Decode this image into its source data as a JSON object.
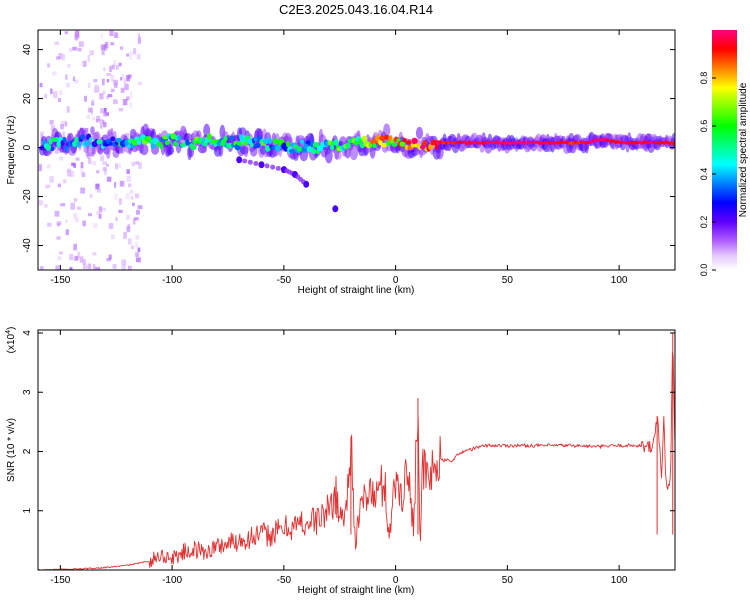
{
  "title": "C2E3.2025.043.16.04.R14",
  "chart_data": [
    {
      "type": "heatmap",
      "xlabel": "Height of straight line (km)",
      "ylabel": "Frequency (Hz)",
      "xlim": [
        -160,
        125
      ],
      "ylim": [
        -50,
        48
      ],
      "xticks": [
        -150,
        -100,
        -50,
        0,
        50,
        100
      ],
      "yticks": [
        -40,
        -20,
        0,
        20,
        40
      ],
      "grid": false,
      "colorbar": {
        "label": "Normalized spectral amplitude",
        "range": [
          0,
          1
        ],
        "ticks": [
          0.0,
          0.2,
          0.4,
          0.6,
          0.8
        ],
        "colors": [
          "#ffffff",
          "#d28cff",
          "#8c00ff",
          "#2a00ff",
          "#0060ff",
          "#00ffff",
          "#00ff80",
          "#40ff00",
          "#ffff00",
          "#ff8000",
          "#ff0000",
          "#ff0080"
        ]
      },
      "ridge": {
        "x": [
          -155,
          -150,
          -145,
          -140,
          -135,
          -130,
          -125,
          -120,
          -115,
          -110,
          -105,
          -100,
          -95,
          -90,
          -85,
          -80,
          -75,
          -70,
          -65,
          -60,
          -55,
          -50,
          -45,
          -40,
          -35,
          -30,
          -25,
          -20,
          -15,
          -10,
          -5,
          0,
          5,
          10,
          15,
          20,
          30,
          40,
          50,
          60,
          70,
          80,
          85,
          90,
          95,
          100,
          105,
          110,
          115,
          120,
          125
        ],
        "freq": [
          1,
          2,
          1,
          3,
          2,
          1,
          2,
          1,
          3,
          2,
          2,
          3,
          2,
          2,
          3,
          2,
          2,
          2,
          3,
          2,
          1,
          1,
          0,
          1,
          0,
          1,
          0,
          1,
          2,
          2,
          3,
          2,
          1,
          2,
          1,
          2,
          2,
          2,
          2,
          2,
          2,
          2,
          2,
          3,
          3,
          2,
          2,
          2,
          2,
          2,
          2
        ],
        "amplitude": [
          0.35,
          0.4,
          0.35,
          0.4,
          0.35,
          0.4,
          0.4,
          0.45,
          0.5,
          0.55,
          0.5,
          0.5,
          0.45,
          0.5,
          0.5,
          0.45,
          0.45,
          0.5,
          0.45,
          0.5,
          0.45,
          0.45,
          0.45,
          0.45,
          0.45,
          0.5,
          0.55,
          0.6,
          0.65,
          0.7,
          0.75,
          0.75,
          0.8,
          0.85,
          0.9,
          0.9,
          0.95,
          0.95,
          1.0,
          1.0,
          0.95,
          0.9,
          0.95,
          1.0,
          0.95,
          0.95,
          0.95,
          0.95,
          0.95,
          0.95,
          0.9
        ]
      },
      "features": [
        {
          "name": "lower branch",
          "x": [
            -70,
            -60,
            -50,
            -45,
            -40
          ],
          "freq": [
            -5,
            -7,
            -9,
            -11,
            -15
          ]
        },
        {
          "name": "isolated blob",
          "x": [
            -27
          ],
          "freq": [
            -25
          ]
        }
      ]
    },
    {
      "type": "line",
      "xlabel": "Height of straight line (km)",
      "ylabel": "SNR (10 * v/v)",
      "yscale_note": "(x10",
      "yscale_exp": "4",
      "xlim": [
        -160,
        125
      ],
      "ylim": [
        0,
        4.05
      ],
      "xticks": [
        -150,
        -100,
        -50,
        0,
        50,
        100
      ],
      "yticks": [
        1,
        2,
        3,
        4
      ],
      "grid": false,
      "color": "#e03030",
      "series": [
        {
          "x": [
            -160,
            -150,
            -140,
            -130,
            -120,
            -110,
            -105,
            -100,
            -95,
            -90,
            -85,
            -80,
            -75,
            -70,
            -65,
            -60,
            -55,
            -50,
            -45,
            -40,
            -35,
            -30,
            -27,
            -25,
            -22,
            -20,
            -18,
            -15,
            -12,
            -10,
            -8,
            -5,
            -3,
            0,
            3,
            5,
            8,
            10,
            11,
            12,
            15,
            18,
            20,
            25,
            30,
            35,
            40,
            50,
            60,
            70,
            80,
            90,
            100,
            110,
            115,
            117,
            118,
            119,
            120,
            121,
            122,
            123,
            124,
            125
          ],
          "y": [
            0.0,
            0.01,
            0.02,
            0.04,
            0.08,
            0.15,
            0.25,
            0.2,
            0.3,
            0.35,
            0.3,
            0.4,
            0.45,
            0.5,
            0.55,
            0.6,
            0.6,
            0.7,
            0.75,
            0.8,
            0.85,
            1.0,
            1.3,
            0.9,
            1.0,
            2.25,
            0.5,
            1.1,
            1.4,
            1.2,
            1.3,
            1.5,
            0.6,
            1.5,
            1.3,
            1.7,
            0.8,
            2.9,
            0.25,
            1.7,
            1.5,
            1.8,
            1.85,
            1.85,
            2.0,
            2.05,
            2.1,
            2.1,
            2.1,
            2.1,
            2.1,
            2.08,
            2.1,
            2.1,
            2.05,
            2.6,
            2.2,
            1.6,
            2.5,
            1.4,
            1.35,
            1.5,
            4.0,
            2.1
          ]
        }
      ]
    }
  ]
}
